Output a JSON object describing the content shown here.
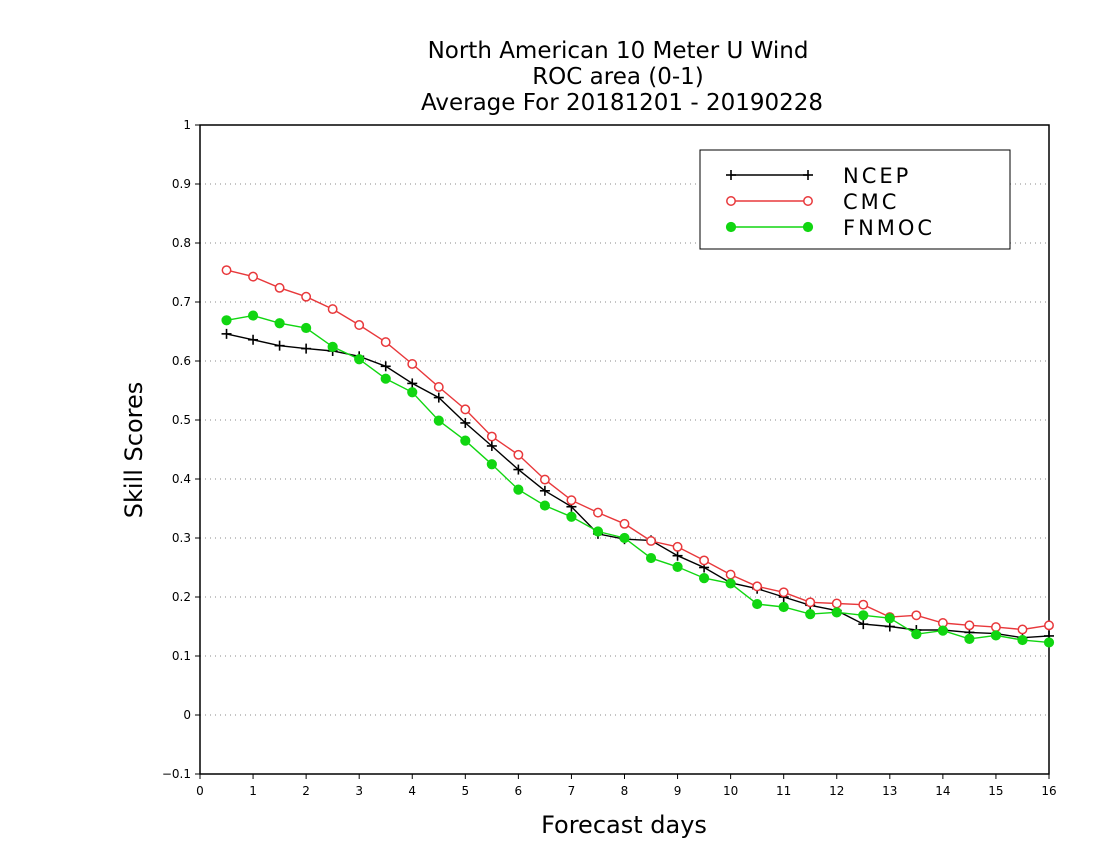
{
  "chart_data": {
    "type": "line",
    "title": [
      "North American 10 Meter U Wind",
      "ROC area (0-1)",
      "Average For 20181201 - 20190228"
    ],
    "xlabel": "Forecast days",
    "ylabel": "Skill Scores",
    "xlim": [
      0,
      16
    ],
    "ylim": [
      -0.1,
      1
    ],
    "xticks": [
      0,
      1,
      2,
      3,
      4,
      5,
      6,
      7,
      8,
      9,
      10,
      11,
      12,
      13,
      14,
      15,
      16
    ],
    "xtick_labels": [
      "0",
      "1",
      "2",
      "3",
      "4",
      "5",
      "6",
      "7",
      "8",
      "9",
      "10",
      "11",
      "12",
      "13",
      "14",
      "15",
      "16"
    ],
    "yticks": [
      -0.1,
      0,
      0.1,
      0.2,
      0.3,
      0.4,
      0.5,
      0.6,
      0.7,
      0.8,
      0.9,
      1
    ],
    "ytick_labels": [
      "−0.1",
      "0",
      "0.1",
      "0.2",
      "0.3",
      "0.4",
      "0.5",
      "0.6",
      "0.7",
      "0.8",
      "0.9",
      "1"
    ],
    "grid": "horizontal dotted",
    "legend_position": "top-right",
    "x": [
      0.5,
      1,
      1.5,
      2,
      2.5,
      3,
      3.5,
      4,
      4.5,
      5,
      5.5,
      6,
      6.5,
      7,
      7.5,
      8,
      8.5,
      9,
      9.5,
      10,
      10.5,
      11,
      11.5,
      12,
      12.5,
      13,
      13.5,
      14,
      14.5,
      15,
      15.5,
      16
    ],
    "series": [
      {
        "name": "NCEP",
        "color": "#000000",
        "marker": "plus",
        "values": [
          0.646,
          0.636,
          0.626,
          0.621,
          0.617,
          0.608,
          0.591,
          0.562,
          0.538,
          0.495,
          0.456,
          0.416,
          0.38,
          0.353,
          0.307,
          0.298,
          0.296,
          0.27,
          0.25,
          0.224,
          0.214,
          0.2,
          0.186,
          0.177,
          0.154,
          0.15,
          0.144,
          0.144,
          0.14,
          0.138,
          0.131,
          0.134
        ]
      },
      {
        "name": "CMC",
        "color": "#e8383b",
        "marker": "open-circle",
        "values": [
          0.754,
          0.743,
          0.724,
          0.709,
          0.688,
          0.661,
          0.632,
          0.595,
          0.556,
          0.518,
          0.472,
          0.441,
          0.399,
          0.364,
          0.343,
          0.324,
          0.295,
          0.285,
          0.262,
          0.238,
          0.218,
          0.208,
          0.191,
          0.189,
          0.187,
          0.166,
          0.169,
          0.156,
          0.152,
          0.149,
          0.145,
          0.152
        ]
      },
      {
        "name": "FNMOC",
        "color": "#11d611",
        "marker": "filled-circle",
        "values": [
          0.669,
          0.677,
          0.664,
          0.656,
          0.624,
          0.603,
          0.57,
          0.547,
          0.499,
          0.465,
          0.425,
          0.382,
          0.355,
          0.336,
          0.311,
          0.3,
          0.266,
          0.251,
          0.232,
          0.223,
          0.188,
          0.183,
          0.171,
          0.174,
          0.169,
          0.164,
          0.137,
          0.143,
          0.129,
          0.135,
          0.127,
          0.123
        ]
      }
    ]
  }
}
